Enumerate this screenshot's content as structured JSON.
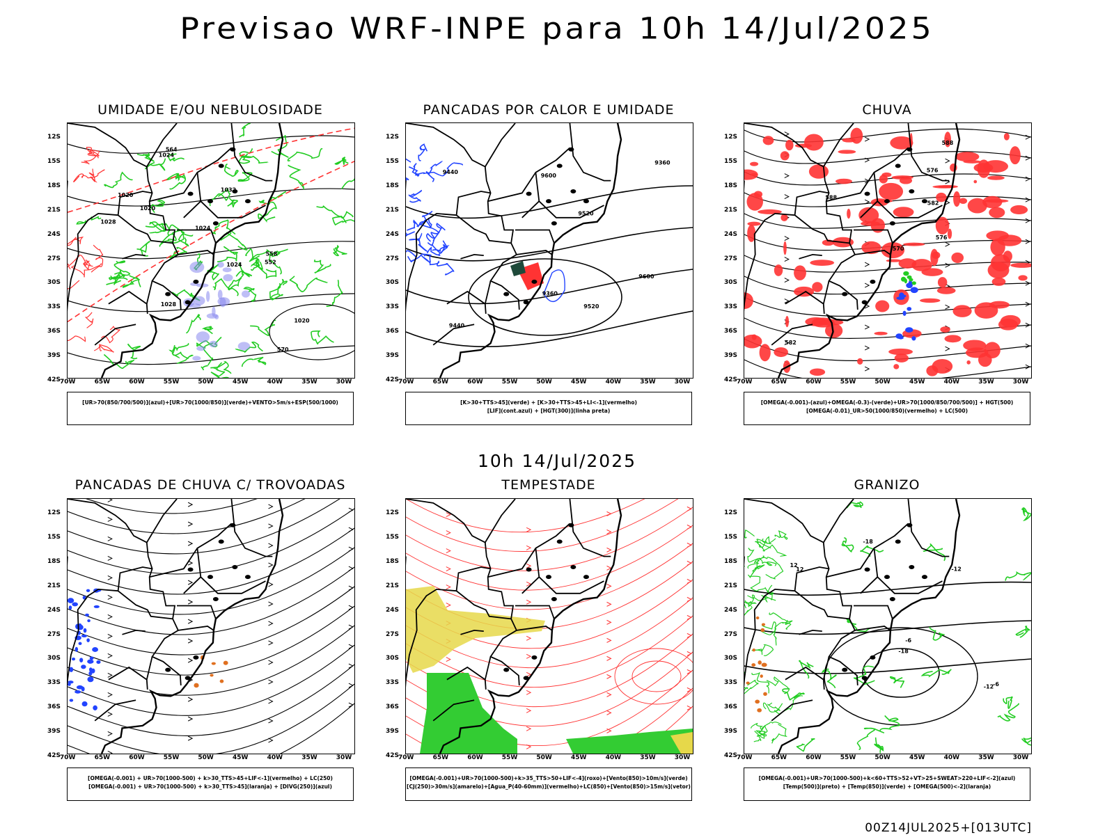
{
  "title": "Previsao WRF-INPE  para 10h 14/Jul/2025",
  "subtitle": "10h 14/Jul/2025",
  "footer": "00Z14JUL2025+[013UTC]",
  "lat_ticks": [
    "12S",
    "15S",
    "18S",
    "21S",
    "24S",
    "27S",
    "30S",
    "33S",
    "36S",
    "39S",
    "42S"
  ],
  "lon_ticks": [
    "70W",
    "65W",
    "60W",
    "55W",
    "50W",
    "45W",
    "40W",
    "35W",
    "30W"
  ],
  "colors": {
    "green": "#22cc22",
    "red": "#ff3333",
    "blue": "#2244ff",
    "yellow": "#e6d84a",
    "orange": "#e07020",
    "black": "#000000"
  },
  "panels": [
    {
      "title": "UMIDADE E/OU NEBULOSIDADE",
      "legend": [
        "[UR>70(850/700/500)](azul)+[UR>70(1000/850)](verde)+VENTO>5m/s+ESP(500/1000)"
      ],
      "contour_labels": [
        "1020",
        "1020",
        "1024",
        "1024",
        "1028",
        "1032",
        "1028",
        "1024",
        "1020",
        "552",
        "564",
        "558",
        "570"
      ]
    },
    {
      "title": "PANCADAS POR CALOR E UMIDADE",
      "legend": [
        "[K>30+TTS>45](verde) + [K>30+TTS>45+LI<-1](vermelho)",
        "[LIF](cont.azul) + [HGT(300)](linha preta)"
      ],
      "contour_labels": [
        "9600",
        "9520",
        "9440",
        "9360",
        "9600",
        "9520",
        "9440",
        "9360"
      ]
    },
    {
      "title": "CHUVA",
      "legend": [
        "[OMEGA(-0.001)-(azul)+OMEGA(-0.3)-(verde)+UR>70(1000/850/700/500)] + HGT(500)",
        "[OMEGA(-0.01)_UR>50(1000/850)(vermelho) + LC(500)"
      ],
      "contour_labels": [
        "588",
        "588",
        "582",
        "576",
        "570",
        "576",
        "582"
      ]
    },
    {
      "title": "PANCADAS DE CHUVA C/ TROVOADAS",
      "legend": [
        "[OMEGA(-0.001) + UR>70(1000-500) + k>30_TTS>45+LIF<-1](vermelho) + LC(250)",
        "[OMEGA(-0.001) + UR>70(1000-500) + k>30_TTS>45](laranja) + [DIVG(250)](azul)"
      ],
      "contour_labels": []
    },
    {
      "title": "TEMPESTADE",
      "legend": [
        "[OMEGA(-0.001)+UR>70(1000-500)+k>35_TTS>50+LIF<-4](roxo)+[Vento(850)>10m/s](verde)",
        "[CJ(250)>30m/s](amarelo)+[Agua_P(40-60mm)](vermelho)+LC(850)+[Vento(850)>15m/s](vetor)"
      ],
      "contour_labels": []
    },
    {
      "title": "GRANIZO",
      "legend": [
        "[OMEGA(-0.001)+UR>70(1000-500)+k<60+TTS>52+VT>25+SWEAT>220+LIF<-2](azul)",
        "[Temp(500)](preto) + [Temp(850)](verde) + [OMEGA(500)<-2](laranja)"
      ],
      "contour_labels": [
        "-6",
        "-12",
        "-18",
        "-12",
        "-18",
        "-6",
        "12",
        "12"
      ]
    }
  ]
}
